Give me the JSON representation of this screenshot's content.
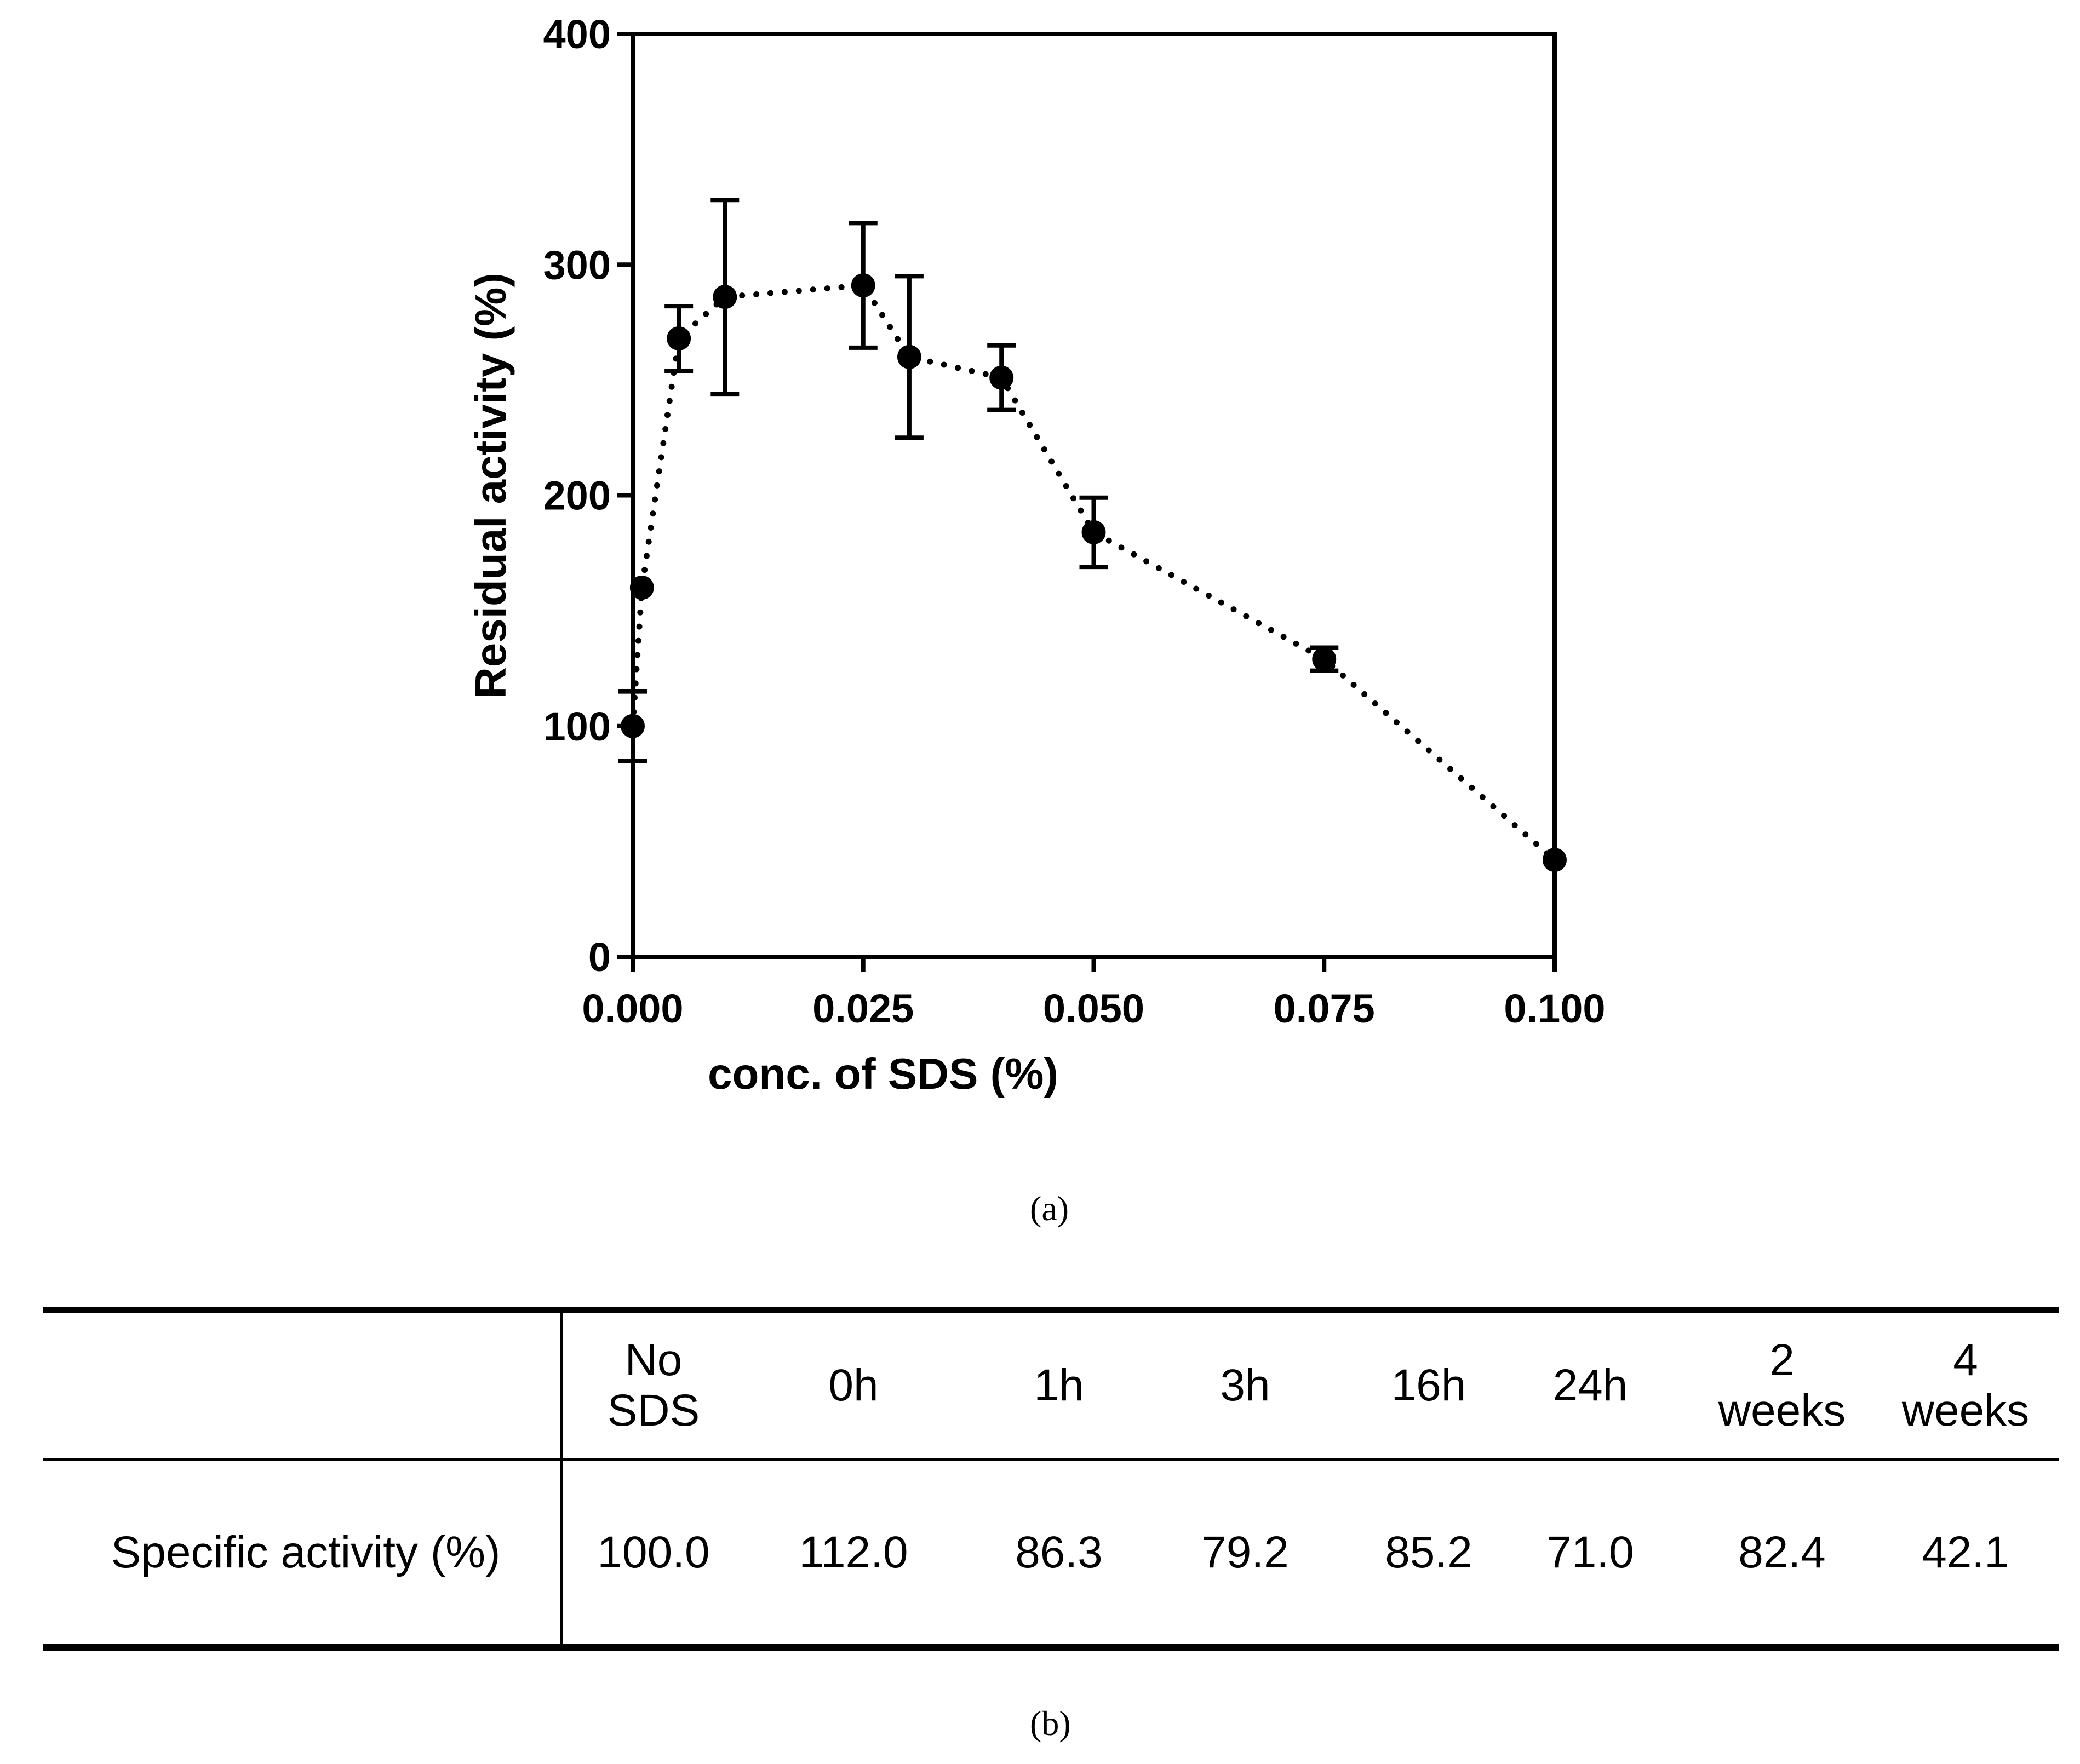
{
  "chart_data": {
    "type": "line",
    "xlabel": "conc. of SDS (%)",
    "ylabel": "Residual activity (%)",
    "xlim": [
      0,
      0.1
    ],
    "ylim": [
      0,
      400
    ],
    "xticks": [
      "0.000",
      "0.025",
      "0.050",
      "0.075",
      "0.100"
    ],
    "yticks": [
      "0",
      "100",
      "200",
      "300",
      "400"
    ],
    "line_style": "dotted",
    "series": [
      {
        "name": "Residual activity",
        "x": [
          0,
          0.001,
          0.005,
          0.01,
          0.025,
          0.03,
          0.04,
          0.05,
          0.075,
          0.1
        ],
        "y": [
          100,
          160,
          268,
          286,
          291,
          260,
          251,
          184,
          129,
          42
        ],
        "err": [
          15,
          0,
          14,
          42,
          27,
          35,
          14,
          15,
          5,
          0
        ]
      }
    ]
  },
  "panel_labels": {
    "a": "(a)",
    "b": "(b)"
  },
  "table": {
    "headers": [
      "",
      "No\nSDS",
      "0h",
      "1h",
      "3h",
      "16h",
      "24h",
      "2\nweeks",
      "4\nweeks"
    ],
    "row_label": "Specific activity (%)",
    "values": [
      "100.0",
      "112.0",
      "86.3",
      "79.2",
      "85.2",
      "71.0",
      "82.4",
      "42.1"
    ]
  }
}
